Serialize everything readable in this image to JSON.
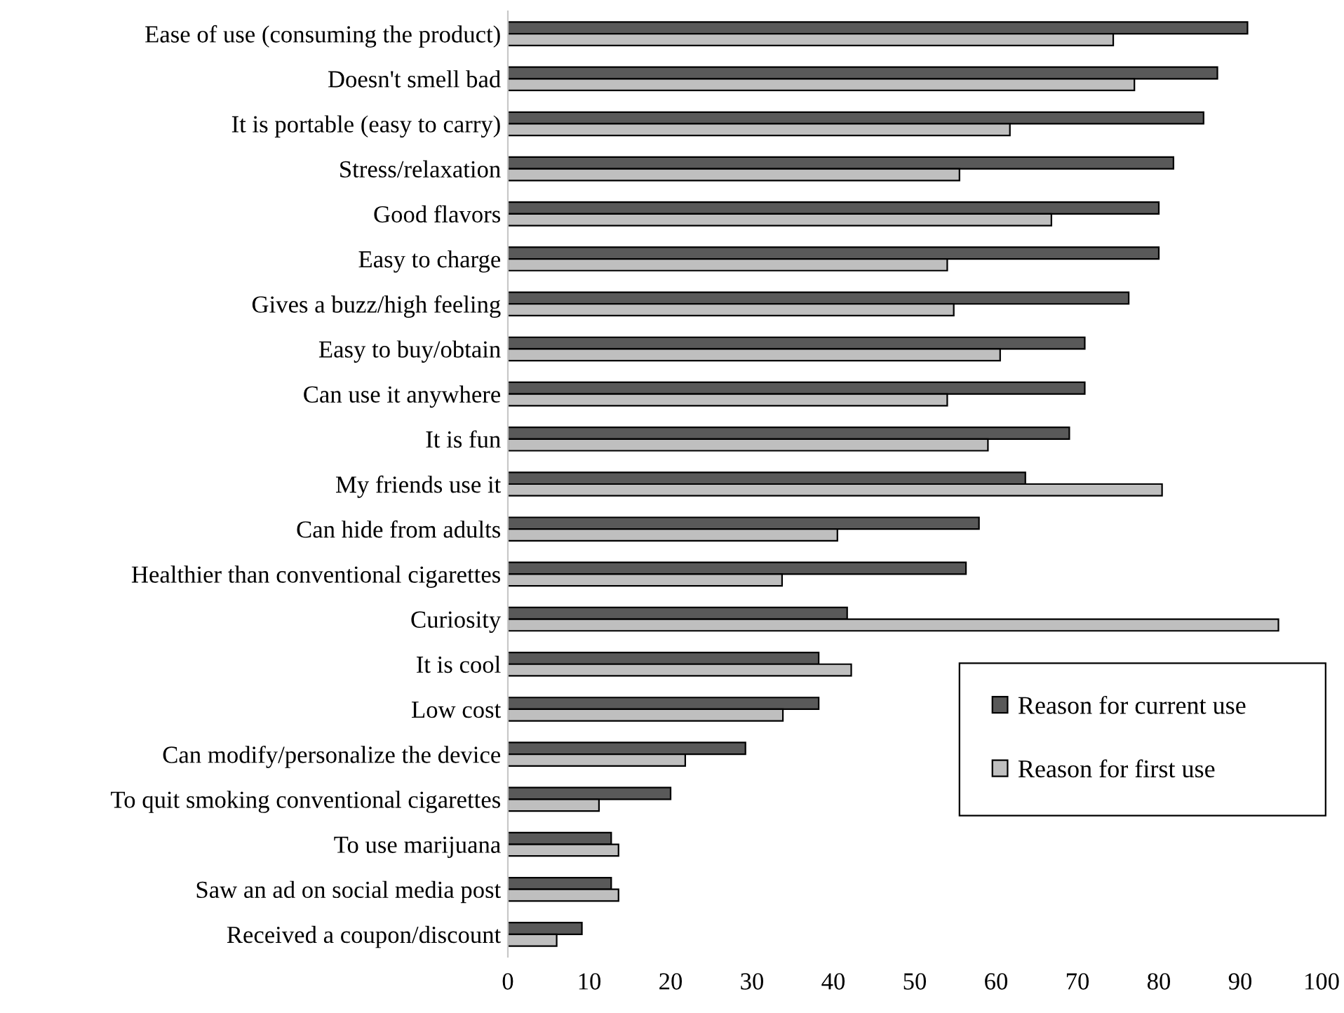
{
  "chart_data": {
    "type": "bar",
    "orientation": "horizontal",
    "categories": [
      "Ease of use (consuming the product)",
      "Doesn't smell bad",
      "It is portable (easy to carry)",
      "Stress/relaxation",
      "Good flavors",
      "Easy to charge",
      "Gives a buzz/high feeling",
      "Easy to buy/obtain",
      "Can use it anywhere",
      "It is fun",
      "My friends use it",
      "Can hide from adults",
      "Healthier than conventional cigarettes",
      "Curiosity",
      "It is cool",
      "Low cost",
      "Can modify/personalize the device",
      "To quit smoking conventional cigarettes",
      "To use marijuana",
      "Saw an ad on social media post",
      "Received a coupon/discount"
    ],
    "series": [
      {
        "name": "Reason for current use",
        "color": "#595959",
        "values": [
          90.9,
          87.2,
          85.5,
          81.8,
          80.0,
          80.0,
          76.3,
          70.9,
          70.9,
          69.0,
          63.6,
          57.9,
          56.3,
          41.7,
          38.2,
          38.2,
          29.2,
          20.0,
          12.7,
          12.7,
          9.1
        ]
      },
      {
        "name": "Reason for first use",
        "color": "#bfbfbf",
        "values": [
          74.4,
          77.0,
          61.7,
          55.5,
          66.8,
          54.0,
          54.8,
          60.5,
          54.0,
          59.0,
          80.4,
          40.5,
          33.7,
          94.7,
          42.2,
          33.8,
          21.8,
          11.2,
          13.6,
          13.6,
          6.0
        ]
      }
    ],
    "xlim": [
      0,
      100
    ],
    "xticks": [
      0,
      10,
      20,
      30,
      40,
      50,
      60,
      70,
      80,
      90,
      100
    ],
    "grid": false,
    "legend": "bottom right"
  }
}
